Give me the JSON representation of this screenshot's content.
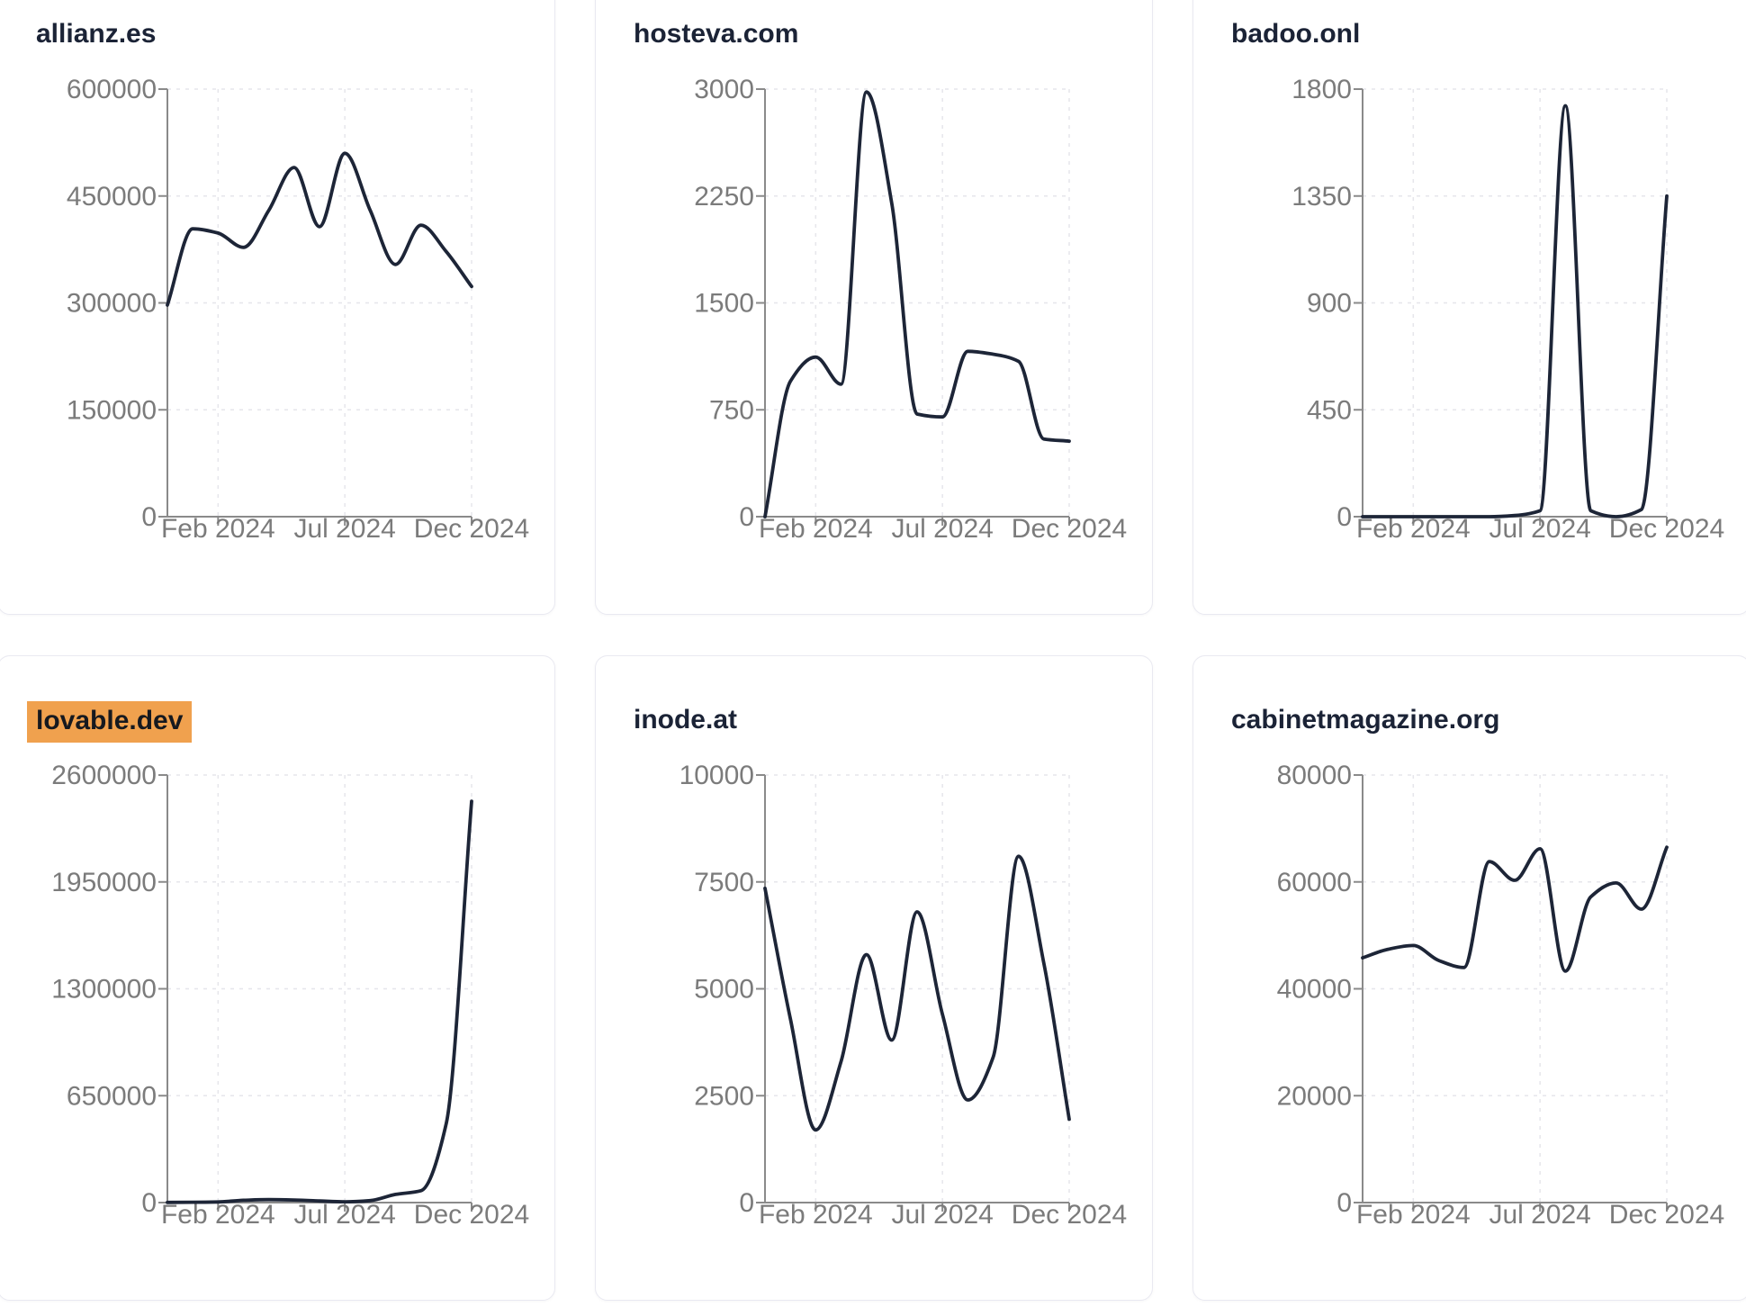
{
  "style": {
    "line_color": "#1d2537",
    "axis_color": "#8a8a8a",
    "grid_color": "#e6e6eb",
    "label_color": "#7b7b7b",
    "title_color": "#1b2336",
    "highlight_bg": "#f0a14e",
    "highlight_text": "#16191f",
    "card_border": "#e9e9f1"
  },
  "chart_data": [
    {
      "type": "line",
      "title": "allianz.es",
      "title_highlighted": false,
      "months": [
        "Dec 2023",
        "Jan 2024",
        "Feb 2024",
        "Mar 2024",
        "Apr 2024",
        "May 2024",
        "Jun 2024",
        "Jul 2024",
        "Aug 2024",
        "Sep 2024",
        "Oct 2024",
        "Nov 2024",
        "Dec 2024"
      ],
      "values": [
        297000,
        404000,
        398000,
        378000,
        430000,
        490000,
        407000,
        510000,
        430000,
        354000,
        409000,
        372000,
        323000
      ],
      "y_ticks": [
        0,
        150000,
        300000,
        450000,
        600000
      ],
      "ylim": [
        0,
        600000
      ],
      "x_tick_labels": [
        {
          "label": "Feb 2024",
          "month_index": 2
        },
        {
          "label": "Jul 2024",
          "month_index": 7
        },
        {
          "label": "Dec 2024",
          "month_index": 12
        }
      ],
      "grid": true,
      "legend": "none"
    },
    {
      "type": "line",
      "title": "hosteva.com",
      "title_highlighted": false,
      "months": [
        "Dec 2023",
        "Jan 2024",
        "Feb 2024",
        "Mar 2024",
        "Apr 2024",
        "May 2024",
        "Jun 2024",
        "Jul 2024",
        "Aug 2024",
        "Sep 2024",
        "Oct 2024",
        "Nov 2024",
        "Dec 2024"
      ],
      "values": [
        0,
        950,
        1120,
        930,
        2980,
        2200,
        720,
        700,
        1160,
        1140,
        1090,
        545,
        530
      ],
      "y_ticks": [
        0,
        750,
        1500,
        2250,
        3000
      ],
      "ylim": [
        0,
        3000
      ],
      "x_tick_labels": [
        {
          "label": "Feb 2024",
          "month_index": 2
        },
        {
          "label": "Jul 2024",
          "month_index": 7
        },
        {
          "label": "Dec 2024",
          "month_index": 12
        }
      ],
      "grid": true,
      "legend": "none"
    },
    {
      "type": "line",
      "title": "badoo.onl",
      "title_highlighted": false,
      "months": [
        "Dec 2023",
        "Jan 2024",
        "Feb 2024",
        "Mar 2024",
        "Apr 2024",
        "May 2024",
        "Jun 2024",
        "Jul 2024",
        "Aug 2024",
        "Sep 2024",
        "Oct 2024",
        "Nov 2024",
        "Dec 2024"
      ],
      "values": [
        0,
        0,
        0,
        0,
        0,
        0,
        5,
        25,
        1730,
        25,
        0,
        30,
        1350
      ],
      "y_ticks": [
        0,
        450,
        900,
        1350,
        1800
      ],
      "ylim": [
        0,
        1800
      ],
      "x_tick_labels": [
        {
          "label": "Feb 2024",
          "month_index": 2
        },
        {
          "label": "Jul 2024",
          "month_index": 7
        },
        {
          "label": "Dec 2024",
          "month_index": 12
        }
      ],
      "grid": true,
      "legend": "none"
    },
    {
      "type": "line",
      "title": "lovable.dev",
      "title_highlighted": true,
      "months": [
        "Dec 2023",
        "Jan 2024",
        "Feb 2024",
        "Mar 2024",
        "Apr 2024",
        "May 2024",
        "Jun 2024",
        "Jul 2024",
        "Aug 2024",
        "Sep 2024",
        "Oct 2024",
        "Nov 2024",
        "Dec 2024"
      ],
      "values": [
        1000,
        2000,
        4000,
        14000,
        18000,
        16000,
        10000,
        5000,
        12000,
        50000,
        72000,
        480000,
        2440000
      ],
      "y_ticks": [
        0,
        650000,
        1300000,
        1950000,
        2600000
      ],
      "ylim": [
        0,
        2600000
      ],
      "x_tick_labels": [
        {
          "label": "Feb 2024",
          "month_index": 2
        },
        {
          "label": "Jul 2024",
          "month_index": 7
        },
        {
          "label": "Dec 2024",
          "month_index": 12
        }
      ],
      "grid": true,
      "legend": "none"
    },
    {
      "type": "line",
      "title": "inode.at",
      "title_highlighted": false,
      "months": [
        "Dec 2023",
        "Jan 2024",
        "Feb 2024",
        "Mar 2024",
        "Apr 2024",
        "May 2024",
        "Jun 2024",
        "Jul 2024",
        "Aug 2024",
        "Sep 2024",
        "Oct 2024",
        "Nov 2024",
        "Dec 2024"
      ],
      "values": [
        7350,
        4300,
        1700,
        3300,
        5800,
        3800,
        6800,
        4400,
        2400,
        3400,
        8100,
        5600,
        1950
      ],
      "y_ticks": [
        0,
        2500,
        5000,
        7500,
        10000
      ],
      "ylim": [
        0,
        10000
      ],
      "x_tick_labels": [
        {
          "label": "Feb 2024",
          "month_index": 2
        },
        {
          "label": "Jul 2024",
          "month_index": 7
        },
        {
          "label": "Dec 2024",
          "month_index": 12
        }
      ],
      "grid": true,
      "legend": "none"
    },
    {
      "type": "line",
      "title": "cabinetmagazine.org",
      "title_highlighted": false,
      "months": [
        "Dec 2023",
        "Jan 2024",
        "Feb 2024",
        "Mar 2024",
        "Apr 2024",
        "May 2024",
        "Jun 2024",
        "Jul 2024",
        "Aug 2024",
        "Sep 2024",
        "Oct 2024",
        "Nov 2024",
        "Dec 2024"
      ],
      "values": [
        45800,
        47400,
        48100,
        45300,
        44000,
        63800,
        60300,
        66200,
        43300,
        57200,
        59800,
        54900,
        66500
      ],
      "y_ticks": [
        0,
        20000,
        40000,
        60000,
        80000
      ],
      "ylim": [
        0,
        80000
      ],
      "x_tick_labels": [
        {
          "label": "Feb 2024",
          "month_index": 2
        },
        {
          "label": "Jul 2024",
          "month_index": 7
        },
        {
          "label": "Dec 2024",
          "month_index": 12
        }
      ],
      "grid": true,
      "legend": "none"
    }
  ]
}
